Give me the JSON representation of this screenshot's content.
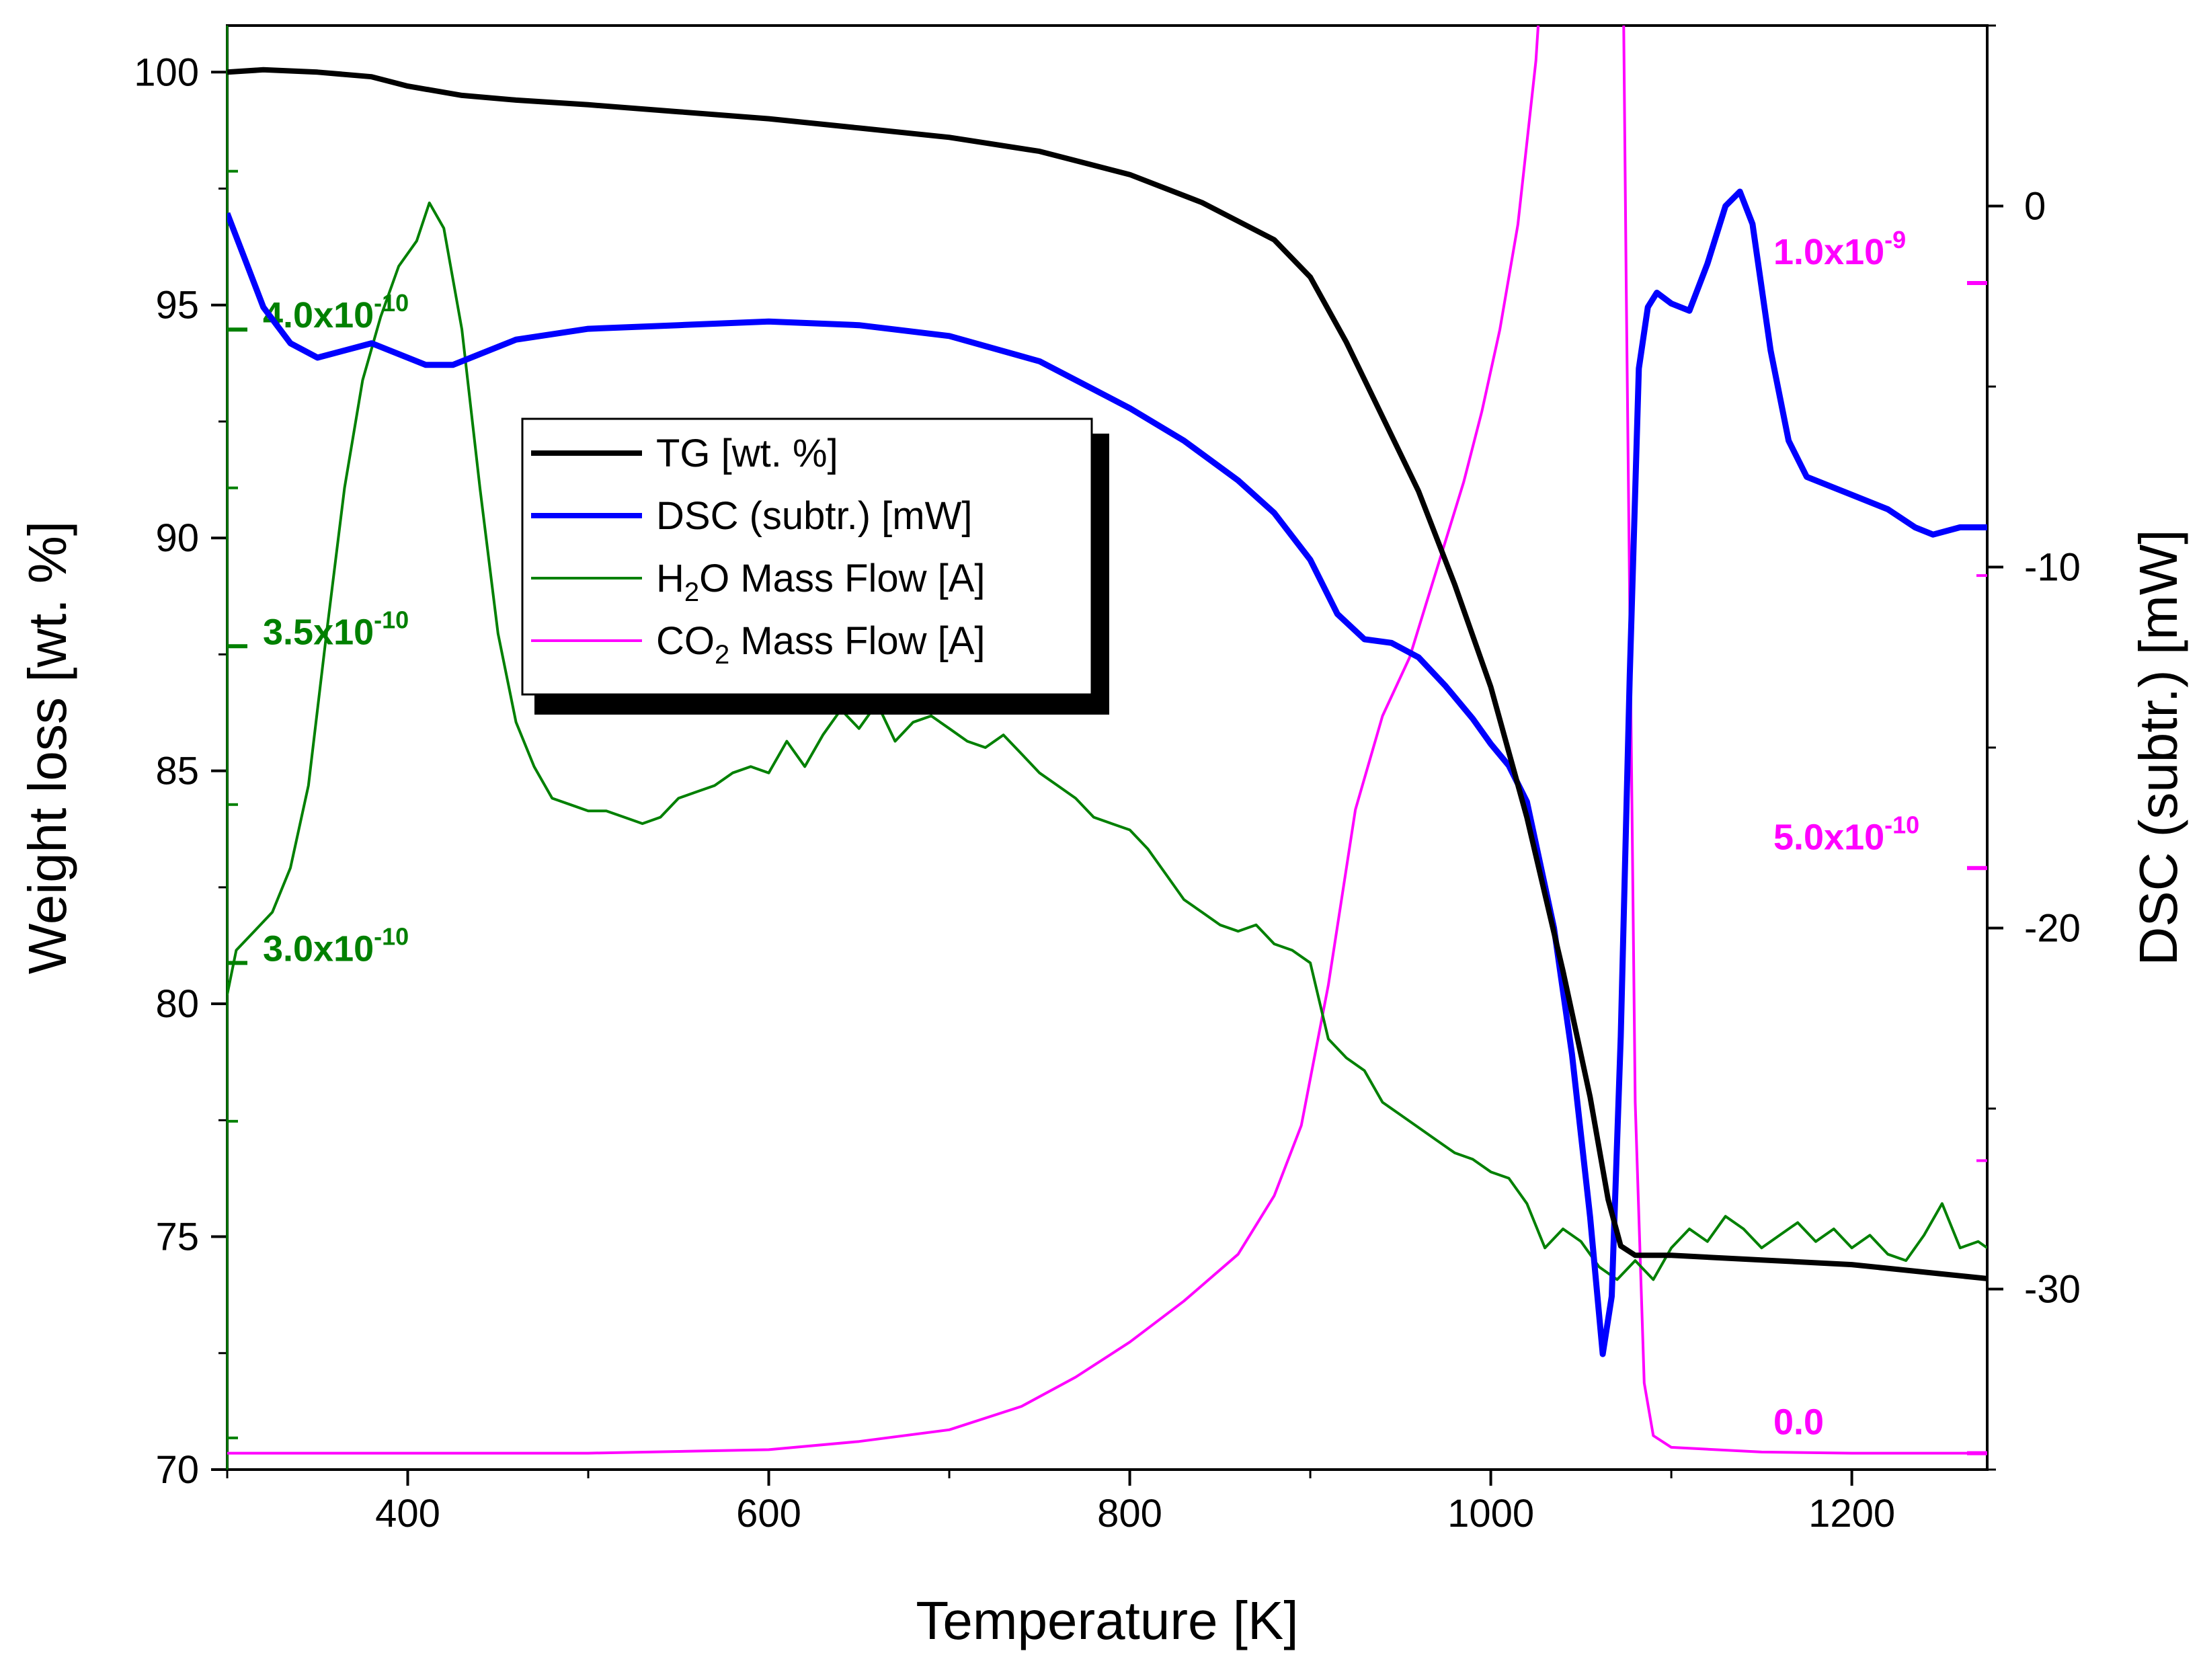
{
  "chart_data": {
    "type": "line",
    "xlabel": "Temperature [K]",
    "ylabel_left": "Weight loss [wt. %]",
    "ylabel_right": "DSC (subtr.) [mW]",
    "xlim": [
      300,
      1275
    ],
    "x_ticks": [
      400,
      600,
      800,
      1000,
      1200
    ],
    "x_tick_labels": [
      "400",
      "600",
      "800",
      "1000",
      "1200"
    ],
    "ylim_left": [
      70,
      101
    ],
    "y_ticks_left": [
      70,
      75,
      80,
      85,
      90,
      95,
      100
    ],
    "y_tick_labels_left": [
      "70",
      "75",
      "80",
      "85",
      "90",
      "95",
      "100"
    ],
    "ylim_right": [
      -35,
      5
    ],
    "y_ticks_right": [
      -30,
      -20,
      -10,
      0
    ],
    "y_tick_labels_right": [
      "-30",
      "-20",
      "-10",
      "0"
    ],
    "h2o_axis": {
      "color": "#008000",
      "range": [
        2.2e-10,
        4.48e-10
      ],
      "ticks": [
        3e-10,
        3.5e-10,
        4e-10
      ],
      "labels": [
        {
          "base": "3.0x10",
          "exp": "-10"
        },
        {
          "base": "3.5x10",
          "exp": "-10"
        },
        {
          "base": "4.0x10",
          "exp": "-10"
        }
      ]
    },
    "co2_axis": {
      "color": "#ff00ff",
      "range": [
        -1.4e-11,
        1.22e-09
      ],
      "ticks": [
        0,
        5e-10,
        1e-09
      ],
      "labels": [
        {
          "base": "0.0",
          "exp": ""
        },
        {
          "base": "5.0x10",
          "exp": "-10"
        },
        {
          "base": "1.0x10",
          "exp": "-9"
        }
      ]
    },
    "legend": {
      "position": "upper-center",
      "entries": [
        {
          "label": "TG [wt. %]",
          "color": "#000000"
        },
        {
          "label": "DSC (subtr.) [mW]",
          "color": "#0000ff"
        },
        {
          "pre": "H",
          "sub": "2",
          "post": "O Mass Flow [A]",
          "color": "#008000"
        },
        {
          "pre": "CO",
          "sub": "2",
          "post": " Mass Flow [A]",
          "color": "#ff00ff"
        }
      ]
    },
    "series": [
      {
        "name": "TG [wt. %]",
        "axis": "left",
        "color": "#000000",
        "x": [
          300,
          320,
          350,
          380,
          400,
          430,
          460,
          500,
          550,
          600,
          650,
          700,
          750,
          780,
          800,
          820,
          840,
          860,
          880,
          900,
          920,
          940,
          960,
          980,
          1000,
          1020,
          1040,
          1055,
          1065,
          1072,
          1080,
          1100,
          1150,
          1200,
          1250,
          1275
        ],
        "y": [
          100.0,
          100.05,
          100.0,
          99.9,
          99.7,
          99.5,
          99.4,
          99.3,
          99.15,
          99.0,
          98.8,
          98.6,
          98.3,
          98.0,
          97.8,
          97.5,
          97.2,
          96.8,
          96.4,
          95.6,
          94.2,
          92.6,
          91.0,
          89.0,
          86.8,
          84.0,
          80.7,
          78.0,
          75.8,
          74.8,
          74.6,
          74.6,
          74.5,
          74.4,
          74.2,
          74.1
        ]
      },
      {
        "name": "DSC (subtr.) [mW]",
        "axis": "right",
        "color": "#0000ff",
        "x": [
          300,
          310,
          320,
          335,
          350,
          365,
          380,
          395,
          410,
          425,
          440,
          460,
          500,
          550,
          600,
          650,
          700,
          750,
          800,
          830,
          860,
          880,
          900,
          915,
          930,
          945,
          960,
          975,
          990,
          1000,
          1010,
          1020,
          1035,
          1045,
          1055,
          1062,
          1067,
          1072,
          1077,
          1082,
          1087,
          1092,
          1100,
          1110,
          1120,
          1130,
          1138,
          1145,
          1155,
          1165,
          1175,
          1200,
          1220,
          1235,
          1245,
          1260,
          1275
        ],
        "y": [
          -0.2,
          -1.5,
          -2.8,
          -3.8,
          -4.2,
          -4.0,
          -3.8,
          -4.1,
          -4.4,
          -4.4,
          -4.1,
          -3.7,
          -3.4,
          -3.3,
          -3.2,
          -3.3,
          -3.6,
          -4.3,
          -5.6,
          -6.5,
          -7.6,
          -8.5,
          -9.8,
          -11.3,
          -12.0,
          -12.1,
          -12.5,
          -13.3,
          -14.2,
          -14.9,
          -15.5,
          -16.5,
          -20.0,
          -23.5,
          -28.0,
          -31.8,
          -30.2,
          -23.0,
          -13.0,
          -4.5,
          -2.8,
          -2.4,
          -2.7,
          -2.9,
          -1.6,
          0.0,
          0.4,
          -0.5,
          -4.0,
          -6.5,
          -7.5,
          -8.0,
          -8.4,
          -8.9,
          -9.1,
          -8.9,
          -8.9
        ]
      },
      {
        "name": "H2O Mass Flow [A]",
        "axis": "h2o",
        "color": "#008000",
        "x": [
          300,
          305,
          315,
          325,
          335,
          345,
          355,
          365,
          375,
          385,
          395,
          405,
          412,
          420,
          430,
          440,
          450,
          460,
          470,
          480,
          490,
          500,
          510,
          520,
          530,
          540,
          550,
          560,
          570,
          580,
          590,
          600,
          610,
          620,
          630,
          640,
          650,
          660,
          670,
          680,
          690,
          700,
          710,
          720,
          730,
          740,
          750,
          760,
          770,
          780,
          790,
          800,
          810,
          820,
          830,
          840,
          850,
          860,
          870,
          880,
          890,
          900,
          910,
          920,
          930,
          940,
          950,
          960,
          970,
          980,
          990,
          1000,
          1010,
          1020,
          1030,
          1040,
          1050,
          1060,
          1070,
          1080,
          1090,
          1100,
          1110,
          1120,
          1130,
          1140,
          1150,
          1160,
          1170,
          1180,
          1190,
          1200,
          1210,
          1220,
          1230,
          1240,
          1250,
          1260,
          1270,
          1275
        ],
        "y": [
          2.95e-10,
          3.02e-10,
          3.05e-10,
          3.08e-10,
          3.15e-10,
          3.28e-10,
          3.52e-10,
          3.75e-10,
          3.92e-10,
          4.02e-10,
          4.1e-10,
          4.14e-10,
          4.2e-10,
          4.16e-10,
          4e-10,
          3.75e-10,
          3.52e-10,
          3.38e-10,
          3.31e-10,
          3.26e-10,
          3.25e-10,
          3.24e-10,
          3.24e-10,
          3.23e-10,
          3.22e-10,
          3.23e-10,
          3.26e-10,
          3.27e-10,
          3.28e-10,
          3.3e-10,
          3.31e-10,
          3.3e-10,
          3.35e-10,
          3.31e-10,
          3.36e-10,
          3.4e-10,
          3.37e-10,
          3.41e-10,
          3.35e-10,
          3.38e-10,
          3.39e-10,
          3.37e-10,
          3.35e-10,
          3.34e-10,
          3.36e-10,
          3.33e-10,
          3.3e-10,
          3.28e-10,
          3.26e-10,
          3.23e-10,
          3.22e-10,
          3.21e-10,
          3.18e-10,
          3.14e-10,
          3.1e-10,
          3.08e-10,
          3.06e-10,
          3.05e-10,
          3.06e-10,
          3.03e-10,
          3.02e-10,
          3e-10,
          2.88e-10,
          2.85e-10,
          2.83e-10,
          2.78e-10,
          2.76e-10,
          2.74e-10,
          2.72e-10,
          2.7e-10,
          2.69e-10,
          2.67e-10,
          2.66e-10,
          2.62e-10,
          2.55e-10,
          2.58e-10,
          2.56e-10,
          2.52e-10,
          2.5e-10,
          2.53e-10,
          2.5e-10,
          2.55e-10,
          2.58e-10,
          2.56e-10,
          2.6e-10,
          2.58e-10,
          2.55e-10,
          2.57e-10,
          2.59e-10,
          2.56e-10,
          2.58e-10,
          2.55e-10,
          2.57e-10,
          2.54e-10,
          2.53e-10,
          2.57e-10,
          2.62e-10,
          2.55e-10,
          2.56e-10,
          2.55e-10
        ]
      },
      {
        "name": "CO2 Mass Flow [A]",
        "axis": "co2",
        "color": "#ff00ff",
        "x": [
          300,
          400,
          500,
          600,
          650,
          700,
          740,
          770,
          800,
          830,
          860,
          880,
          895,
          910,
          925,
          940,
          955,
          965,
          975,
          985,
          995,
          1005,
          1015,
          1025,
          1035,
          1045,
          1052,
          1058,
          1062,
          1066,
          1070,
          1075,
          1080,
          1085,
          1090,
          1100,
          1150,
          1200,
          1275
        ],
        "y": [
          0.0,
          0.0,
          0.0,
          3e-12,
          1e-11,
          2e-11,
          4e-11,
          6.5e-11,
          9.5e-11,
          1.3e-10,
          1.7e-10,
          2.2e-10,
          2.8e-10,
          4e-10,
          5.5e-10,
          6.3e-10,
          6.8e-10,
          7.3e-10,
          7.8e-10,
          8.3e-10,
          8.9e-10,
          9.6e-10,
          1.05e-09,
          1.19e-09,
          1.43e-09,
          1.75e-09,
          2.05e-09,
          2.38e-09,
          2.57e-09,
          2.35e-09,
          1.8e-09,
          1e-09,
          3e-10,
          6e-11,
          1.5e-11,
          5e-12,
          1e-12,
          0.0,
          0.0
        ]
      }
    ]
  }
}
